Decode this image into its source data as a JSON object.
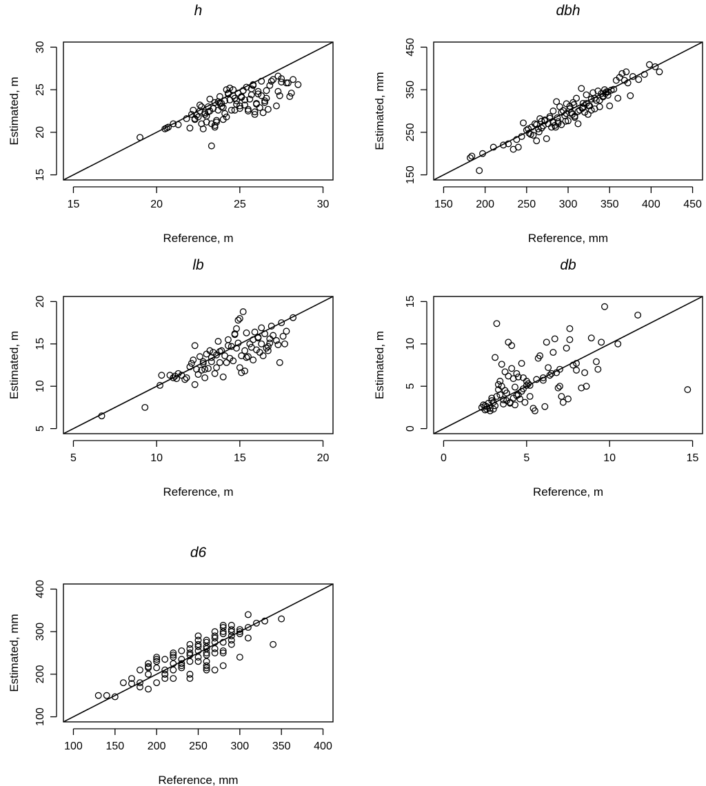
{
  "chart_data": [
    {
      "type": "scatter",
      "title": "h",
      "xlabel": "Reference, m",
      "ylabel": "Estimated, m",
      "xlim": [
        14.4,
        30.6
      ],
      "ylim": [
        14.4,
        30.6
      ],
      "xticks": [
        15,
        20,
        25,
        30
      ],
      "yticks": [
        15,
        20,
        25,
        30
      ],
      "reference_line": "1:1",
      "x": [
        19.0,
        20.5,
        20.6,
        20.7,
        21.0,
        21.3,
        21.8,
        22.0,
        22.1,
        22.2,
        22.3,
        22.4,
        22.5,
        22.6,
        22.7,
        22.8,
        22.9,
        23.0,
        23.1,
        23.2,
        23.3,
        23.3,
        23.4,
        23.5,
        23.5,
        23.6,
        23.7,
        23.8,
        23.9,
        24.0,
        24.1,
        24.2,
        24.3,
        24.4,
        24.5,
        24.6,
        24.7,
        24.8,
        24.9,
        25.0,
        25.1,
        25.2,
        25.3,
        25.4,
        25.5,
        25.6,
        25.7,
        25.8,
        25.9,
        26.0,
        26.1,
        26.2,
        26.3,
        26.4,
        26.5,
        26.6,
        26.7,
        26.8,
        27.0,
        27.2,
        27.3,
        27.4,
        27.5,
        27.8,
        28.0,
        28.2,
        28.5,
        22.3,
        22.6,
        22.9,
        23.2,
        23.6,
        23.9,
        24.3,
        24.7,
        25.0,
        25.3,
        25.7,
        26.0,
        26.3,
        26.6,
        23.1,
        23.4,
        23.7,
        24.0,
        24.4,
        24.8,
        25.2,
        25.5,
        25.8,
        26.1,
        26.5,
        24.1,
        23.0,
        22.7,
        23.5,
        24.6,
        25.9,
        26.9,
        27.3,
        27.5,
        28.1,
        27.9,
        23.8,
        24.2,
        25.1
      ],
      "y": [
        19.4,
        20.4,
        20.5,
        20.6,
        21.0,
        20.9,
        21.6,
        20.5,
        22.1,
        22.6,
        21.5,
        22.0,
        21.8,
        22.5,
        21.0,
        20.4,
        22.3,
        21.2,
        23.0,
        22.5,
        18.4,
        21.0,
        22.8,
        20.8,
        23.5,
        21.2,
        22.6,
        24.2,
        23.4,
        22.9,
        23.7,
        21.8,
        24.5,
        23.8,
        22.6,
        25.0,
        24.0,
        23.3,
        24.6,
        22.8,
        24.1,
        24.9,
        23.2,
        25.3,
        22.5,
        23.9,
        24.4,
        25.5,
        22.1,
        23.4,
        24.8,
        22.9,
        26.0,
        22.3,
        23.7,
        24.9,
        22.7,
        25.5,
        26.2,
        23.1,
        26.6,
        24.3,
        25.9,
        25.8,
        24.2,
        26.2,
        25.6,
        21.6,
        23.2,
        22.1,
        23.9,
        21.4,
        23.0,
        24.6,
        22.6,
        23.1,
        23.8,
        25.1,
        23.3,
        24.3,
        24.0,
        22.4,
        22.8,
        23.6,
        21.5,
        25.2,
        23.7,
        24.9,
        22.7,
        25.6,
        24.5,
        23.5,
        22.2,
        21.9,
        23.0,
        20.6,
        24.3,
        22.4,
        26.0,
        24.8,
        26.3,
        24.6,
        25.8,
        23.4,
        25.0,
        24.2
      ]
    },
    {
      "type": "scatter",
      "title": "dbh",
      "xlabel": "Reference, mm",
      "ylabel": "Estimated, mm",
      "xlim": [
        138,
        462
      ],
      "ylim": [
        138,
        462
      ],
      "xticks": [
        150,
        200,
        250,
        300,
        350,
        400,
        450
      ],
      "yticks": [
        150,
        250,
        350,
        450
      ],
      "reference_line": "1:1",
      "x": [
        182,
        184,
        193,
        197,
        210,
        222,
        228,
        234,
        238,
        240,
        244,
        246,
        250,
        253,
        256,
        258,
        260,
        262,
        264,
        266,
        268,
        270,
        272,
        274,
        276,
        278,
        280,
        282,
        284,
        286,
        288,
        290,
        292,
        294,
        296,
        298,
        300,
        302,
        304,
        306,
        308,
        310,
        312,
        314,
        316,
        318,
        320,
        322,
        324,
        326,
        328,
        330,
        332,
        334,
        336,
        338,
        340,
        342,
        344,
        346,
        348,
        350,
        352,
        355,
        358,
        360,
        362,
        365,
        368,
        370,
        372,
        375,
        378,
        385,
        392,
        398,
        405,
        410,
        252,
        262,
        272,
        282,
        292,
        302,
        312,
        322,
        332,
        342,
        255,
        268,
        278,
        288,
        298,
        308,
        318,
        328,
        338,
        348,
        265,
        285,
        305,
        325,
        345,
        287,
        297,
        307,
        317
      ],
      "y": [
        190,
        194,
        160,
        200,
        215,
        220,
        223,
        210,
        233,
        215,
        240,
        272,
        255,
        248,
        262,
        243,
        270,
        230,
        258,
        282,
        276,
        265,
        279,
        235,
        270,
        287,
        262,
        300,
        266,
        322,
        275,
        310,
        268,
        301,
        289,
        317,
        277,
        311,
        296,
        320,
        285,
        330,
        270,
        302,
        353,
        318,
        297,
        338,
        292,
        312,
        328,
        343,
        305,
        325,
        347,
        310,
        341,
        333,
        350,
        345,
        337,
        312,
        349,
        351,
        372,
        330,
        379,
        388,
        372,
        392,
        366,
        336,
        381,
        374,
        386,
        409,
        404,
        392,
        258,
        268,
        277,
        273,
        297,
        305,
        299,
        318,
        330,
        335,
        245,
        260,
        283,
        271,
        294,
        288,
        308,
        302,
        325,
        345,
        251,
        262,
        292,
        312,
        341,
        284,
        276,
        315,
        306
      ]
    },
    {
      "type": "scatter",
      "title": "lb",
      "xlabel": "Reference, m",
      "ylabel": "Estimated, m",
      "xlim": [
        4.4,
        20.6
      ],
      "ylim": [
        4.4,
        20.6
      ],
      "xticks": [
        5,
        10,
        15,
        20
      ],
      "yticks": [
        5,
        10,
        15,
        20
      ],
      "reference_line": "1:1",
      "x": [
        6.7,
        9.3,
        10.2,
        10.3,
        10.8,
        11.0,
        11.1,
        11.2,
        11.3,
        11.5,
        11.7,
        11.8,
        12.0,
        12.1,
        12.2,
        12.3,
        12.4,
        12.5,
        12.6,
        12.7,
        12.8,
        12.9,
        13.0,
        13.1,
        13.2,
        13.3,
        13.4,
        13.5,
        13.6,
        13.7,
        13.8,
        13.9,
        14.0,
        14.1,
        14.2,
        14.3,
        14.4,
        14.5,
        14.6,
        14.7,
        14.8,
        14.9,
        15.0,
        15.1,
        15.2,
        15.3,
        15.4,
        15.5,
        15.6,
        15.7,
        15.8,
        15.9,
        16.0,
        16.1,
        16.2,
        16.3,
        16.4,
        16.5,
        16.6,
        16.7,
        16.8,
        16.9,
        17.0,
        17.2,
        17.4,
        17.5,
        17.6,
        17.8,
        18.2,
        12.3,
        12.8,
        13.3,
        13.8,
        14.3,
        14.8,
        15.3,
        15.8,
        16.3,
        16.8,
        17.3,
        14.9,
        15.1,
        14.7,
        15.0,
        16.1,
        13.6,
        15.4,
        16.7,
        17.7,
        12.9
      ],
      "y": [
        6.5,
        7.5,
        10.1,
        11.3,
        11.3,
        11.0,
        11.2,
        10.9,
        11.5,
        11.3,
        10.8,
        11.0,
        12.3,
        12.7,
        13.1,
        14.8,
        12.0,
        11.4,
        13.5,
        11.9,
        12.7,
        11.0,
        13.8,
        12.1,
        14.2,
        12.9,
        14.0,
        11.5,
        13.7,
        15.3,
        12.8,
        14.2,
        11.1,
        13.6,
        12.8,
        15.5,
        13.3,
        14.7,
        13.0,
        16.1,
        14.5,
        17.8,
        12.2,
        13.6,
        18.8,
        14.2,
        16.3,
        13.5,
        15.0,
        14.6,
        13.1,
        16.4,
        14.3,
        15.7,
        14.0,
        15.0,
        13.6,
        16.2,
        14.5,
        14.2,
        15.6,
        17.1,
        16.0,
        15.4,
        12.8,
        17.5,
        15.9,
        16.5,
        18.1,
        10.2,
        12.9,
        13.4,
        14.1,
        14.8,
        16.8,
        11.8,
        15.5,
        16.9,
        15.1,
        14.9,
        15.1,
        11.6,
        16.2,
        18.0,
        15.8,
        12.2,
        13.4,
        14.7,
        15.0,
        12.0
      ]
    },
    {
      "type": "scatter",
      "title": "db",
      "xlabel": "Reference, m",
      "ylabel": "Estimated, m",
      "xlim": [
        -0.6,
        15.6
      ],
      "ylim": [
        -0.6,
        15.6
      ],
      "xticks": [
        0,
        5,
        10,
        15
      ],
      "yticks": [
        0,
        5,
        10,
        15
      ],
      "reference_line": "1:1",
      "x": [
        2.3,
        2.4,
        2.5,
        2.6,
        2.7,
        2.8,
        2.9,
        3.0,
        3.1,
        3.2,
        3.3,
        3.4,
        3.5,
        3.6,
        3.7,
        3.8,
        3.9,
        4.0,
        4.1,
        4.2,
        4.3,
        4.4,
        4.5,
        4.6,
        4.7,
        4.8,
        4.9,
        5.0,
        5.2,
        5.4,
        5.6,
        5.8,
        6.0,
        6.2,
        6.4,
        6.6,
        6.8,
        7.0,
        7.2,
        7.4,
        7.6,
        7.8,
        8.0,
        8.3,
        8.6,
        8.9,
        9.2,
        9.5,
        9.7,
        10.5,
        11.7,
        14.7,
        3.0,
        3.2,
        3.5,
        3.8,
        4.1,
        4.4,
        4.7,
        5.0,
        5.5,
        6.0,
        6.5,
        7.0,
        7.5,
        8.0,
        3.3,
        3.6,
        4.0,
        4.5,
        5.2,
        6.1,
        6.9,
        7.6,
        8.5,
        9.3,
        2.6,
        2.9,
        3.1,
        3.4,
        3.7,
        4.2,
        4.8,
        5.7,
        6.3,
        7.1,
        2.5,
        2.8,
        3.9,
        4.3,
        5.1,
        6.7
      ],
      "y": [
        2.5,
        2.8,
        2.2,
        2.6,
        3.0,
        2.4,
        3.6,
        3.1,
        8.4,
        12.4,
        5.2,
        4.0,
        7.6,
        3.4,
        6.7,
        4.2,
        10.2,
        3.1,
        9.8,
        5.9,
        2.8,
        6.5,
        4.0,
        3.5,
        7.7,
        4.7,
        3.1,
        5.6,
        5.1,
        2.4,
        5.8,
        8.6,
        6.0,
        10.2,
        6.3,
        9.0,
        6.6,
        5.0,
        3.1,
        9.5,
        11.8,
        7.5,
        7.7,
        4.8,
        5.0,
        10.7,
        7.9,
        10.2,
        14.4,
        10.0,
        13.4,
        4.6,
        2.3,
        3.8,
        5.0,
        3.3,
        7.1,
        3.9,
        4.4,
        5.1,
        2.1,
        5.7,
        6.5,
        7.0,
        3.5,
        6.9,
        4.6,
        2.9,
        3.0,
        6.1,
        3.8,
        2.6,
        4.8,
        10.5,
        6.6,
        7.0,
        2.3,
        3.3,
        2.7,
        5.6,
        4.5,
        3.6,
        6.0,
        8.3,
        7.2,
        3.8,
        2.7,
        2.1,
        6.2,
        4.9,
        5.3,
        10.6
      ]
    },
    {
      "type": "scatter",
      "title": "d6",
      "xlabel": "Reference, mm",
      "ylabel": "Estimated, mm",
      "xlim": [
        88,
        412
      ],
      "ylim": [
        88,
        412
      ],
      "xticks": [
        100,
        150,
        200,
        250,
        300,
        350,
        400
      ],
      "yticks": [
        100,
        200,
        300,
        400
      ],
      "reference_line": "1:1",
      "x": [
        130,
        140,
        150,
        160,
        170,
        170,
        180,
        180,
        190,
        190,
        190,
        200,
        200,
        200,
        210,
        210,
        210,
        220,
        220,
        220,
        220,
        230,
        230,
        230,
        240,
        240,
        240,
        240,
        240,
        250,
        250,
        250,
        250,
        260,
        260,
        260,
        260,
        260,
        260,
        270,
        270,
        270,
        270,
        280,
        280,
        280,
        280,
        280,
        290,
        290,
        290,
        290,
        300,
        300,
        300,
        310,
        310,
        310,
        320,
        330,
        340,
        350,
        190,
        200,
        210,
        220,
        230,
        240,
        250,
        260,
        270,
        280,
        290,
        300,
        240,
        250,
        260,
        270,
        280,
        260,
        270,
        280,
        290,
        180,
        190,
        200,
        210,
        220,
        230,
        250,
        260
      ],
      "y": [
        150,
        150,
        147,
        180,
        178,
        190,
        170,
        210,
        200,
        218,
        225,
        215,
        230,
        240,
        190,
        210,
        235,
        225,
        245,
        250,
        190,
        235,
        215,
        255,
        230,
        260,
        270,
        190,
        200,
        240,
        255,
        265,
        290,
        230,
        220,
        245,
        260,
        265,
        280,
        210,
        250,
        275,
        300,
        220,
        255,
        275,
        295,
        315,
        270,
        290,
        305,
        315,
        240,
        295,
        305,
        285,
        310,
        340,
        320,
        325,
        270,
        330,
        165,
        180,
        200,
        210,
        220,
        245,
        230,
        210,
        290,
        250,
        280,
        300,
        250,
        280,
        275,
        260,
        300,
        215,
        285,
        310,
        300,
        180,
        215,
        235,
        200,
        240,
        225,
        270,
        250
      ]
    }
  ]
}
